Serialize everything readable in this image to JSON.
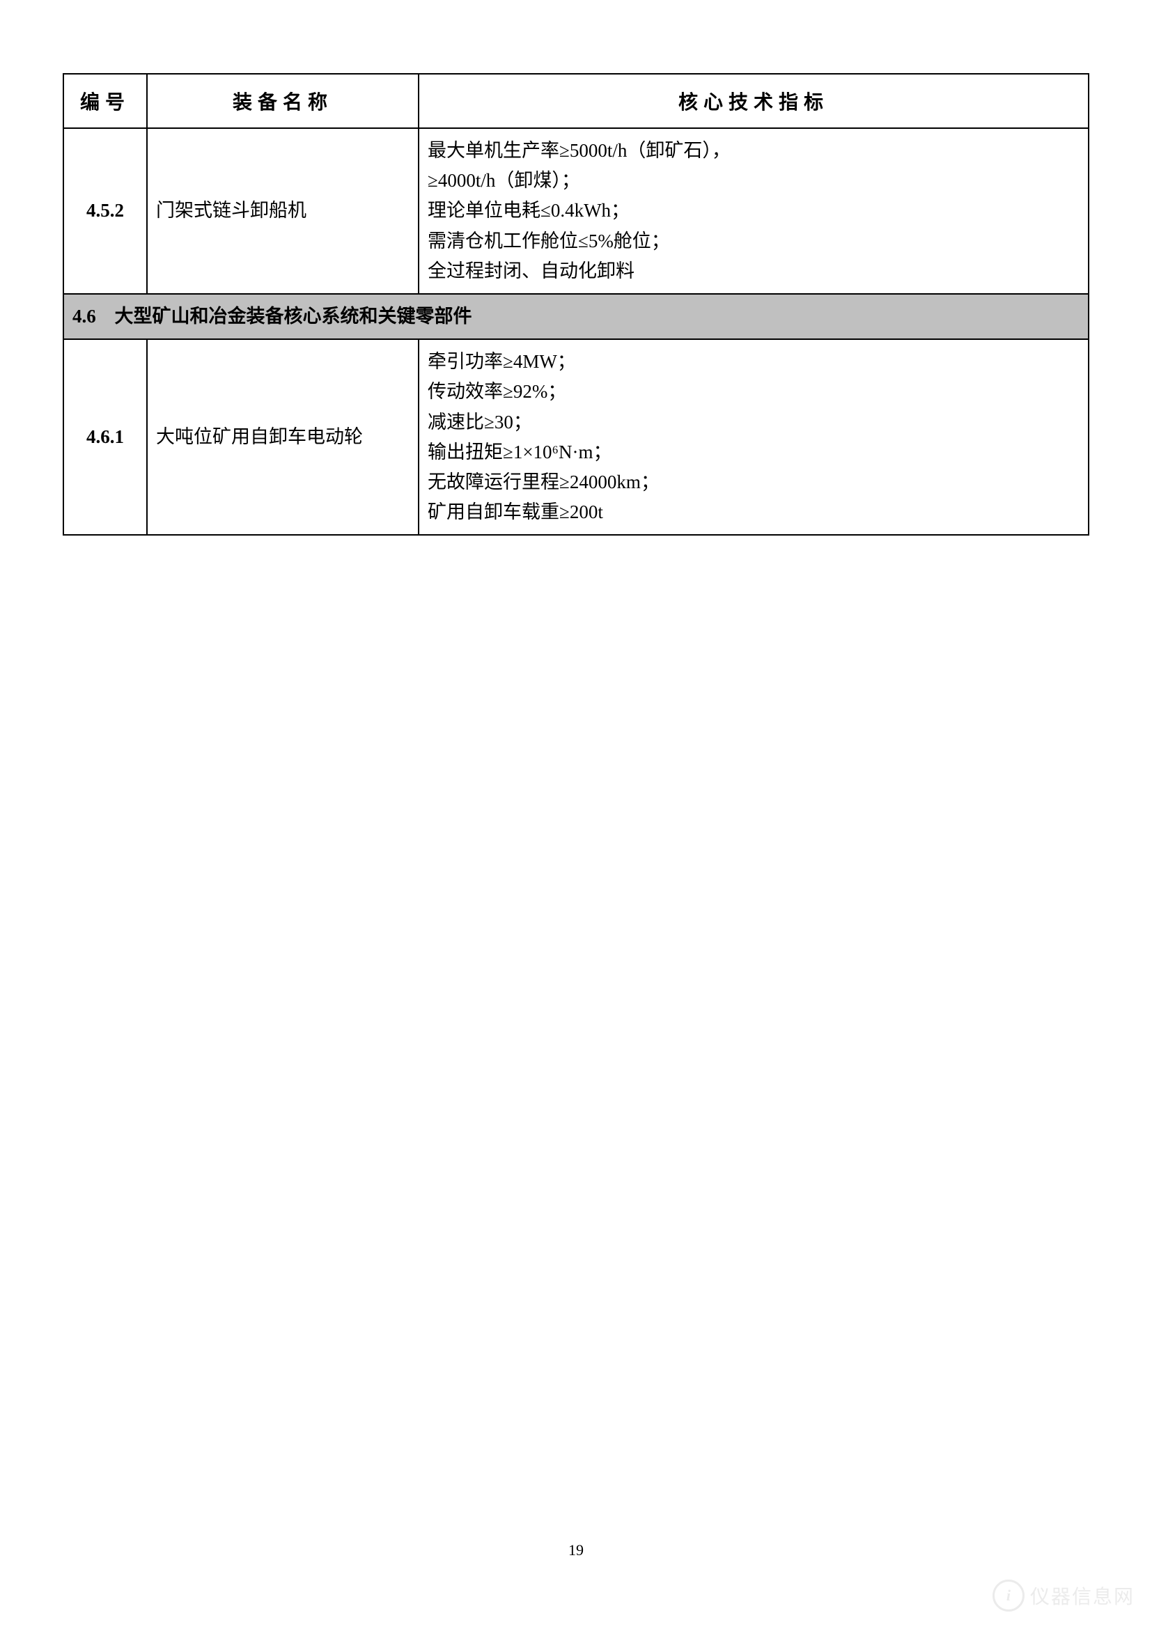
{
  "table": {
    "headers": {
      "id": "编号",
      "name": "装备名称",
      "spec": "核心技术指标"
    },
    "rows": [
      {
        "type": "data",
        "id": "4.5.2",
        "name": "门架式链斗卸船机",
        "specs": [
          "最大单机生产率≥5000t/h（卸矿石），",
          "≥4000t/h（卸煤）；",
          "理论单位电耗≤0.4kWh；",
          "需清仓机工作舱位≤5%舱位；",
          "全过程封闭、自动化卸料"
        ]
      },
      {
        "type": "section",
        "id": "4.6",
        "title": "大型矿山和冶金装备核心系统和关键零部件"
      },
      {
        "type": "data",
        "id": "4.6.1",
        "name": "大吨位矿用自卸车电动轮",
        "specs": [
          "牵引功率≥4MW；",
          "传动效率≥92%；",
          "减速比≥30；",
          "输出扭矩≥1×10⁶N·m；",
          "无故障运行里程≥24000km；",
          "矿用自卸车载重≥200t"
        ]
      }
    ]
  },
  "page_number": "19",
  "watermark": {
    "icon_text": "i",
    "text": "仪器信息网"
  },
  "colors": {
    "section_bg": "#c0c0c0",
    "border": "#000000",
    "text": "#000000",
    "bg": "#ffffff"
  }
}
